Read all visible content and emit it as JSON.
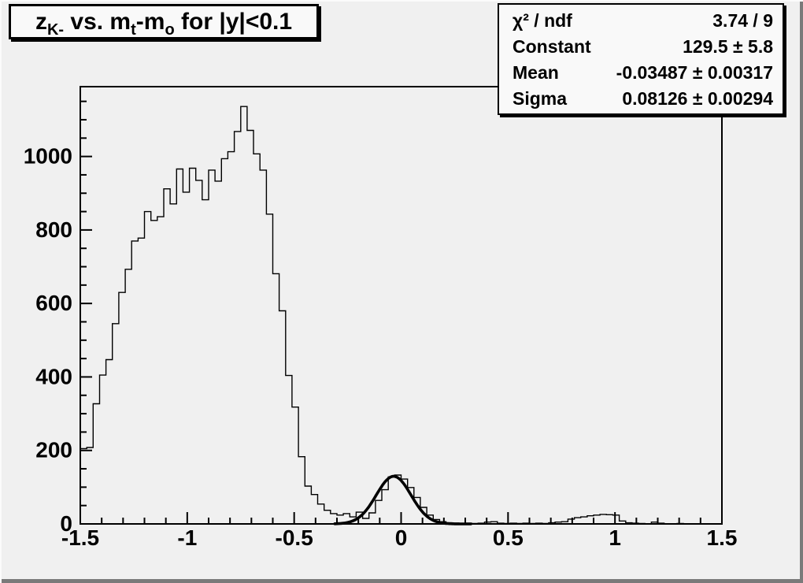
{
  "title": {
    "p1": "z",
    "s1": "K-",
    "p2": " vs. m",
    "s2": "t",
    "p3": "-m",
    "s3": "o",
    "p4": " for |y|<0.1"
  },
  "stats": {
    "rows": [
      {
        "label": "χ² / ndf",
        "value": "3.74 / 9"
      },
      {
        "label": "Constant",
        "value": "129.5 ± 5.8"
      },
      {
        "label": "Mean",
        "value": "-0.03487 ± 0.00317"
      },
      {
        "label": "Sigma",
        "value": "0.08126 ± 0.00294"
      }
    ]
  },
  "colors": {
    "canvas_bg": "#f0f0f0",
    "box_bg": "#f9f9f9",
    "line": "#000000",
    "border_highlight": "#fbfbfb",
    "border_shadow": "#7a7a7a"
  },
  "chart_data": {
    "type": "bar",
    "subtype": "step-histogram",
    "title": "z_{K-} vs. m_{t}-m_{o} for |y|<0.1",
    "xlabel": "",
    "ylabel": "",
    "xlim": [
      -1.5,
      1.5
    ],
    "ylim": [
      0,
      1190
    ],
    "grid": false,
    "legend_position": "top-right-stats-box",
    "x_bin_start": -1.5,
    "bin_width": 0.03,
    "values": [
      205,
      208,
      327,
      405,
      447,
      545,
      630,
      693,
      770,
      778,
      850,
      826,
      836,
      912,
      871,
      966,
      903,
      968,
      935,
      882,
      963,
      933,
      994,
      1013,
      1068,
      1136,
      1071,
      1007,
      963,
      843,
      681,
      580,
      404,
      318,
      183,
      103,
      80,
      54,
      37,
      28,
      24,
      28,
      19,
      32,
      15,
      30,
      64,
      93,
      128,
      133,
      122,
      99,
      72,
      45,
      24,
      12,
      6,
      3,
      2,
      1,
      2,
      1,
      2,
      5,
      6,
      2,
      1,
      2,
      1,
      2,
      1,
      2,
      1,
      3,
      5,
      6,
      13,
      17,
      19,
      22,
      24,
      26,
      25,
      24,
      8,
      3,
      2,
      1,
      0,
      5,
      2,
      0,
      0,
      1,
      0,
      0,
      0,
      0,
      0,
      0
    ],
    "x_ticks": [
      {
        "v": -1.5,
        "label": "-1.5"
      },
      {
        "v": -1.0,
        "label": "-1"
      },
      {
        "v": -0.5,
        "label": "-0.5"
      },
      {
        "v": 0.0,
        "label": "0"
      },
      {
        "v": 0.5,
        "label": "0.5"
      },
      {
        "v": 1.0,
        "label": "1"
      },
      {
        "v": 1.5,
        "label": "1.5"
      }
    ],
    "x_minor_step": 0.1,
    "y_ticks": [
      {
        "v": 0,
        "label": "0"
      },
      {
        "v": 200,
        "label": "200"
      },
      {
        "v": 400,
        "label": "400"
      },
      {
        "v": 600,
        "label": "600"
      },
      {
        "v": 800,
        "label": "800"
      },
      {
        "v": 1000,
        "label": "1000"
      }
    ],
    "y_minor_step": 50,
    "fit": {
      "type": "gaussian",
      "chi2": 3.74,
      "ndf": 9,
      "constant": 129.5,
      "constant_err": 5.8,
      "mean": -0.03487,
      "mean_err": 0.00317,
      "sigma": 0.08126,
      "sigma_err": 0.00294,
      "draw_range": [
        -0.31,
        0.33
      ]
    }
  }
}
